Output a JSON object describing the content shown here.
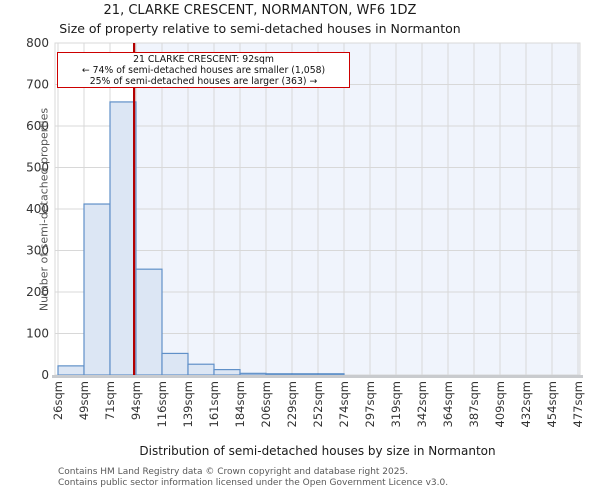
{
  "title": "21, CLARKE CRESCENT, NORMANTON, WF6 1DZ",
  "subtitle": "Size of property relative to semi-detached houses in Normanton",
  "annotation": {
    "line1": "21 CLARKE CRESCENT: 92sqm",
    "line2": "← 74% of semi-detached houses are smaller (1,058)",
    "line3": "25% of semi-detached houses are larger (363) →"
  },
  "chart_data": {
    "type": "bar",
    "title": "21, CLARKE CRESCENT, NORMANTON, WF6 1DZ",
    "subtitle": "Size of property relative to semi-detached houses in Normanton",
    "xlabel": "Distribution of semi-detached houses by size in Normanton",
    "ylabel": "Number of semi-detached properties",
    "ylim": [
      0,
      800
    ],
    "yticks": [
      0,
      100,
      200,
      300,
      400,
      500,
      600,
      700,
      800
    ],
    "grid": true,
    "tick_labels": [
      "26sqm",
      "49sqm",
      "71sqm",
      "94sqm",
      "116sqm",
      "139sqm",
      "161sqm",
      "184sqm",
      "206sqm",
      "229sqm",
      "252sqm",
      "274sqm",
      "297sqm",
      "319sqm",
      "342sqm",
      "364sqm",
      "387sqm",
      "409sqm",
      "432sqm",
      "454sqm",
      "477sqm"
    ],
    "bin_edges_sqm": [
      26,
      49,
      71,
      94,
      116,
      139,
      161,
      184,
      206,
      229,
      252,
      274,
      297,
      319,
      342,
      364,
      387,
      409,
      432,
      454,
      477
    ],
    "values": [
      22,
      412,
      658,
      255,
      52,
      26,
      13,
      4,
      3,
      3,
      3,
      0,
      0,
      0,
      0,
      0,
      0,
      0,
      0,
      0
    ],
    "marker_sqm": 92,
    "marker_label": "21 CLARKE CRESCENT: 92sqm",
    "smaller_pct": "74%",
    "smaller_count": "1,058",
    "larger_pct": "25%",
    "larger_count": "363"
  },
  "footer": {
    "line1": "Contains HM Land Registry data © Crown copyright and database right 2025.",
    "line2": "Contains public sector information licensed under the Open Government Licence v3.0."
  },
  "colors": {
    "bar_fill": "#dce6f4",
    "bar_stroke": "#6090c8",
    "marker_line": "#b30000",
    "annotation_border": "#cc0000",
    "shade_right_of_marker": "#f0f4fc",
    "gridline": "#d8d8d8",
    "axis_band": "#c9cbce",
    "tick_text": "#333333",
    "muted_text": "#595959"
  }
}
